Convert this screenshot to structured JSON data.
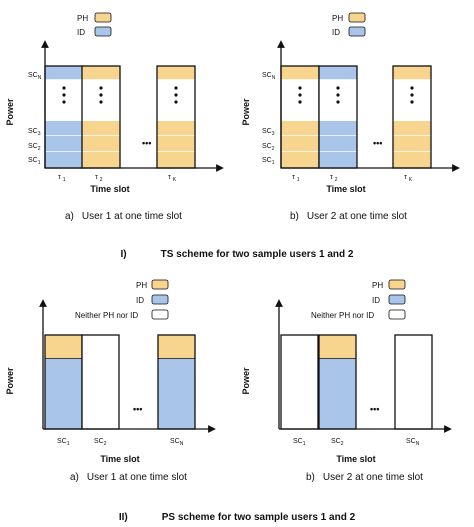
{
  "colors": {
    "ph": "#f7d58e",
    "id": "#a9c5ea",
    "line": "#111111",
    "none": "#ffffff"
  },
  "legend": {
    "ph": "PH",
    "id": "ID",
    "neither": "Neither PH nor ID"
  },
  "axes": {
    "power": "Power",
    "time_slot": "Time slot"
  },
  "ellipsis": "•••",
  "ts_section": {
    "title_roman": "I)",
    "title": "TS scheme for two sample users 1 and 2",
    "sc_labels": [
      "SC",
      "SC",
      "SC",
      "SC"
    ],
    "sc_subs": [
      "N",
      "3",
      "2",
      "1"
    ],
    "tau_labels": [
      "τ",
      "τ",
      "τ"
    ],
    "tau_subs": [
      "1",
      "2",
      "K"
    ],
    "panels": [
      {
        "letter": "a)",
        "caption": "User 1 at one time slot",
        "slots": [
          [
            "id",
            "id",
            "id",
            "id",
            "id"
          ],
          [
            "ph",
            "ph",
            "ph",
            "ph",
            "ph"
          ],
          [
            "ph",
            "ph",
            "ph",
            "ph",
            "ph"
          ]
        ]
      },
      {
        "letter": "b)",
        "caption": "User 2 at one time slot",
        "slots": [
          [
            "ph",
            "ph",
            "ph",
            "ph",
            "ph"
          ],
          [
            "id",
            "id",
            "id",
            "id",
            "id"
          ],
          [
            "ph",
            "ph",
            "ph",
            "ph",
            "ph"
          ]
        ]
      }
    ]
  },
  "ps_section": {
    "title_roman": "II)",
    "title": "PS scheme for two sample users 1 and 2",
    "sc_labels": [
      "SC",
      "SC",
      "SC"
    ],
    "sc_subs": [
      "1",
      "2",
      "N"
    ],
    "panels": [
      {
        "letter": "a)",
        "caption": "User 1 at one time slot",
        "bars": [
          {
            "ph": 0.25,
            "id": 0.75
          },
          {
            "ph": 0,
            "id": 0
          },
          {
            "ph": 0.25,
            "id": 0.75
          }
        ]
      },
      {
        "letter": "b)",
        "caption": "User 2 at one time slot",
        "bars": [
          {
            "ph": 0,
            "id": 0
          },
          {
            "ph": 0.25,
            "id": 0.75
          },
          {
            "ph": 0,
            "id": 0
          }
        ]
      }
    ]
  }
}
